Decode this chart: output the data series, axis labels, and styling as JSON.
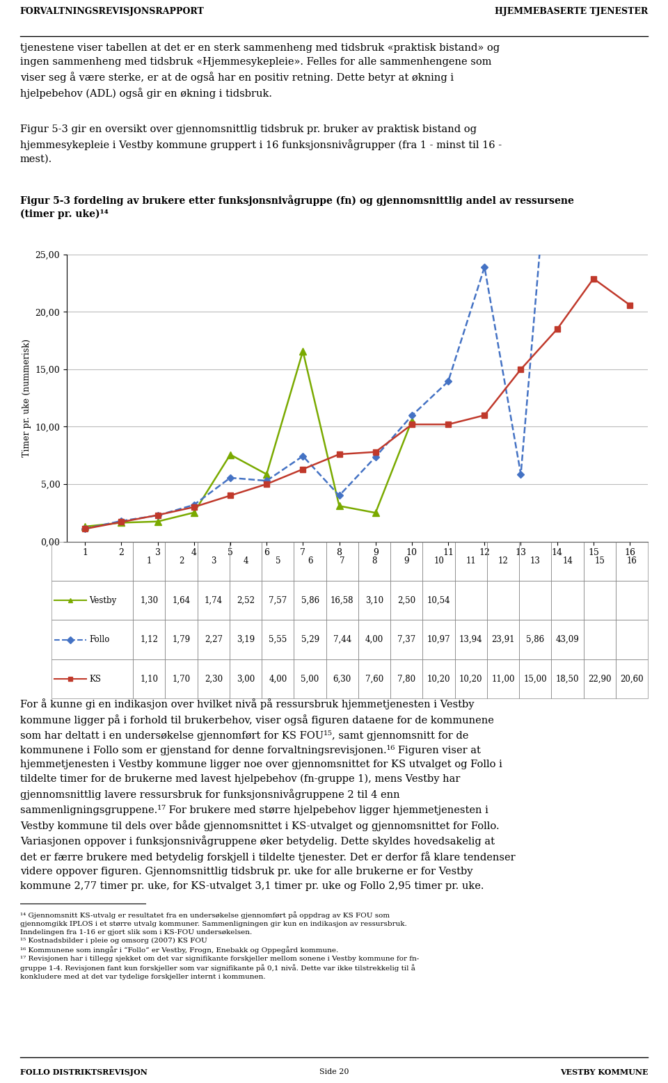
{
  "header_left": "FORVALTNINGSREVISJONSRAPPORT",
  "header_right": "HJEMMEBASERTE TJENESTER",
  "footer_left": "FOLLO DISTRIKTSREVISJON",
  "footer_center": "Side 20",
  "footer_right": "VESTBY KOMMUNE",
  "para1": "tjenestene viser tabellen at det er en sterk sammenheng med tidsbruk «praktisk bistand» og\ningen sammenheng med tidsbruk «Hjemmesykepleie». Felles for alle sammenhengene som\nviser seg å være sterke, er at de også har en positiv retning. Dette betyr at økning i\nhjelpebehov (ADL) også gir en økning i tidsbruk.",
  "para2": "Figur 5-3 gir en oversikt over gjennomsnittlig tidsbruk pr. bruker av praktisk bistand og\nhjemmesykepleie i Vestby kommune gruppert i 16 funksjonsnivågrupper (fra 1 - minst til 16 -\nmest).",
  "chart_title": "Figur 5-3 fordeling av brukere etter funksjonsnivågruppe (fn) og gjennomsnittlig andel av ressursene\n(timer pr. uke)¹⁴",
  "ylabel": "Timer pr. uke (nummerisk)",
  "xlim": [
    0.5,
    16.5
  ],
  "ylim": [
    0,
    25
  ],
  "yticks": [
    0.0,
    5.0,
    10.0,
    15.0,
    20.0,
    25.0
  ],
  "xticks": [
    1,
    2,
    3,
    4,
    5,
    6,
    7,
    8,
    9,
    10,
    11,
    12,
    13,
    14,
    15,
    16
  ],
  "vestby": {
    "x": [
      1,
      2,
      3,
      4,
      5,
      6,
      7,
      8,
      9,
      10
    ],
    "y": [
      1.3,
      1.64,
      1.74,
      2.52,
      7.57,
      5.86,
      16.58,
      3.1,
      2.5,
      10.54
    ],
    "label": "Vestby",
    "color": "#7aaa00",
    "marker": "^",
    "linestyle": "-"
  },
  "follo": {
    "x": [
      1,
      2,
      3,
      4,
      5,
      6,
      7,
      8,
      9,
      10,
      11,
      12,
      13,
      14
    ],
    "y": [
      1.12,
      1.79,
      2.27,
      3.19,
      5.55,
      5.29,
      7.44,
      4.0,
      7.37,
      10.97,
      13.94,
      23.91,
      5.86,
      43.09
    ],
    "label": "Follo",
    "color": "#4472c4",
    "marker": "D",
    "linestyle": "--"
  },
  "ks": {
    "x": [
      1,
      2,
      3,
      4,
      5,
      6,
      7,
      8,
      9,
      10,
      11,
      12,
      13,
      14,
      15,
      16
    ],
    "y": [
      1.1,
      1.7,
      2.3,
      3.0,
      4.0,
      5.0,
      6.3,
      7.6,
      7.8,
      10.2,
      10.2,
      11.0,
      15.0,
      18.5,
      22.9,
      20.6
    ],
    "label": "KS",
    "color": "#c0392b",
    "marker": "s",
    "linestyle": "-"
  },
  "table_data": {
    "Vestby": [
      "1,30",
      "1,64",
      "1,74",
      "2,52",
      "7,57",
      "5,86",
      "16,58",
      "3,10",
      "2,50",
      "10,54",
      "",
      "",
      "",
      "",
      "",
      ""
    ],
    "Follo": [
      "1,12",
      "1,79",
      "2,27",
      "3,19",
      "5,55",
      "5,29",
      "7,44",
      "4,00",
      "7,37",
      "10,97",
      "13,94",
      "23,91",
      "5,86",
      "43,09",
      "",
      ""
    ],
    "KS": [
      "1,10",
      "1,70",
      "2,30",
      "3,00",
      "4,00",
      "5,00",
      "6,30",
      "7,60",
      "7,80",
      "10,20",
      "10,20",
      "11,00",
      "15,00",
      "18,50",
      "22,90",
      "20,60"
    ]
  },
  "fn_labels": [
    "1",
    "2",
    "3",
    "4",
    "5",
    "6",
    "7",
    "8",
    "9",
    "10",
    "11",
    "12",
    "13",
    "14",
    "15",
    "16"
  ],
  "para3": "For å kunne gi en indikasjon over hvilket nivå på ressursbruk hjemmetjenesten i Vestby\nkommune ligger på i forhold til brukerbehov, viser også figuren dataene for de kommunene\nsom har deltatt i en undersøkelse gjennomført for KS FOU¹⁵, samt gjennomsnitt for de\nkommunene i Follo som er gjenstand for denne forvaltningsrevisjonen.¹⁶ Figuren viser at\nhjemmetjenesten i Vestby kommune ligger noe over gjennomsnittet for KS utvalget og Follo i\ntildelte timer for de brukerne med lavest hjelpebehov (fn-gruppe 1), mens Vestby har\ngjennomsnittlig lavere ressursbruk for funksjonsnivågruppene 2 til 4 enn\nsammenligningsgruppene.¹⁷ For brukere med større hjelpebehov ligger hjemmetjenesten i\nVestby kommune til dels over både gjennomsnittet i KS-utvalget og gjennomsnittet for Follo.\nVariasjonen oppover i funksjonsnivågruppene øker betydelig. Dette skyldes hovedsakelig at\ndet er færre brukere med betydelig forskjell i tildelte tjenester. Det er derfor få klare tendenser\nvidere oppover figuren. Gjennomsnittlig tidsbruk pr. uke for alle brukerne er for Vestby\nkommune 2,77 timer pr. uke, for KS-utvalget 3,1 timer pr. uke og Follo 2,95 timer pr. uke.",
  "footnote_line": "_______________",
  "fn14": "¹⁴ Gjennomsnitt KS-utvalg er resultatet fra en undersøkelse gjennomført på oppdrag av KS FOU som\ngjennomgikk IPLOS i et større utvalg kommuner. Sammenligningen gir kun en indikasjon av ressursbruk.\nInndelingen fra 1-16 er gjort slik som i KS-FOU undersøkelsen.",
  "fn15": "¹⁵ Kostnadsbilder i pleie og omsorg (2007) KS FOU",
  "fn16": "¹⁶ Kommunene som inngår i “Follo” er Vestby, Frogn, Enebakk og Oppegård kommune.",
  "fn17": "¹⁷ Revisjonen har i tillegg sjekket om det var signifikante forskjeller mellom sonene i Vestby kommune for fn-\ngruppe 1-4. Revisjonen fant kun forskjeller som var signifikante på 0,1 nivå. Dette var ikke tilstrekkelig til å\nkonkludere med at det var tydelige forskjeller internt i kommunen."
}
